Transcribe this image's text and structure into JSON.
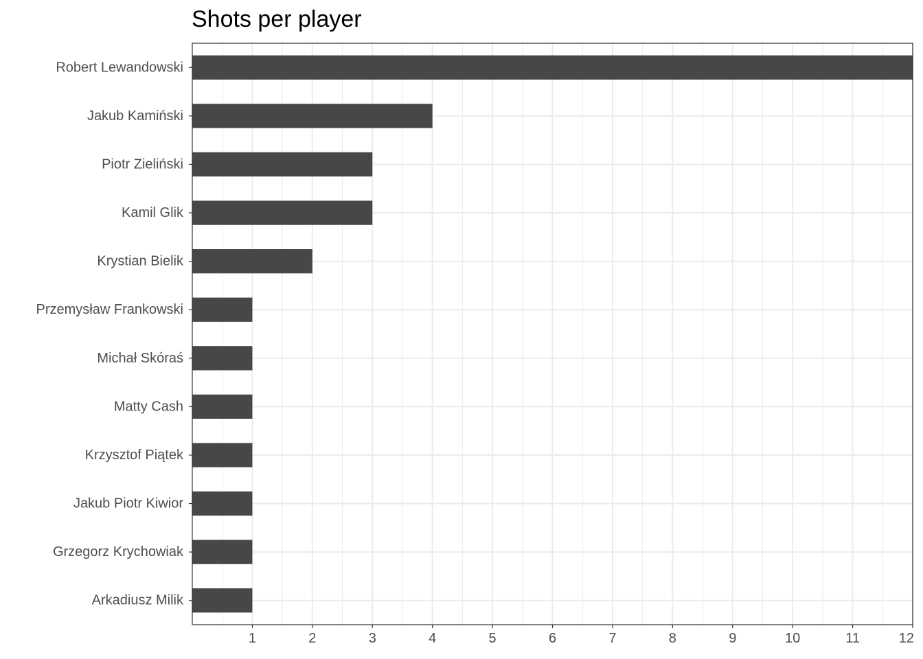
{
  "chart_data": {
    "type": "bar",
    "orientation": "horizontal",
    "title": "Shots per player",
    "xlabel": "",
    "ylabel": "",
    "categories": [
      "Robert Lewandowski",
      "Jakub Kamiński",
      "Piotr Zieliński",
      "Kamil Glik",
      "Krystian Bielik",
      "Przemysław Frankowski",
      "Michał Skóraś",
      "Matty Cash",
      "Krzysztof Piątek",
      "Jakub Piotr Kiwior",
      "Grzegorz Krychowiak",
      "Arkadiusz Milik"
    ],
    "values": [
      12,
      4,
      3,
      3,
      2,
      1,
      1,
      1,
      1,
      1,
      1,
      1
    ],
    "xlim": [
      0,
      12
    ],
    "xticks": [
      1,
      2,
      3,
      4,
      5,
      6,
      7,
      8,
      9,
      10,
      11,
      12
    ],
    "grid": true,
    "bar_color": "#474747",
    "grid_color": "#ebebeb",
    "legend": "none"
  }
}
